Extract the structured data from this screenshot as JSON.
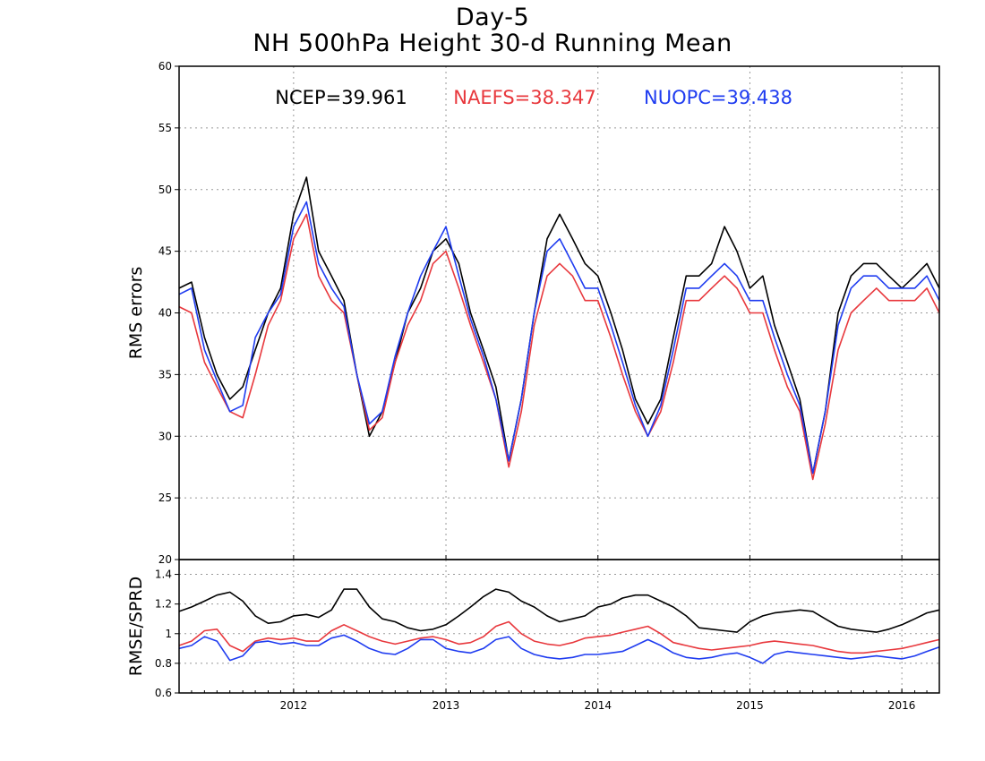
{
  "title_line1": "Day-5",
  "title_line2": "NH 500hPa Height 30-d Running Mean",
  "stats": [
    {
      "label": "NCEP=39.961",
      "color": "#000000"
    },
    {
      "label": "NAEFS=38.347",
      "color": "#e8383d"
    },
    {
      "label": "NUOPC=39.438",
      "color": "#1f3cf0"
    }
  ],
  "x_ticks": [
    "2012",
    "2013",
    "2014",
    "2015",
    "2016"
  ],
  "chart_data": [
    {
      "type": "line",
      "ylabel": "RMS errors",
      "ylim": [
        20,
        60
      ],
      "yticks": [
        20,
        25,
        30,
        35,
        40,
        45,
        50,
        55,
        60
      ],
      "xlim": [
        "2011-04-01",
        "2016-03-31"
      ],
      "grid": true,
      "x": [
        "2011-04-01",
        "2011-05-01",
        "2011-06-01",
        "2011-07-01",
        "2011-08-01",
        "2011-09-01",
        "2011-10-01",
        "2011-11-01",
        "2011-12-01",
        "2012-01-01",
        "2012-02-01",
        "2012-03-01",
        "2012-04-01",
        "2012-05-01",
        "2012-06-01",
        "2012-07-01",
        "2012-08-01",
        "2012-09-01",
        "2012-10-01",
        "2012-11-01",
        "2012-12-01",
        "2013-01-01",
        "2013-02-01",
        "2013-03-01",
        "2013-04-01",
        "2013-05-01",
        "2013-06-01",
        "2013-07-01",
        "2013-08-01",
        "2013-09-01",
        "2013-10-01",
        "2013-11-01",
        "2013-12-01",
        "2014-01-01",
        "2014-02-01",
        "2014-03-01",
        "2014-04-01",
        "2014-05-01",
        "2014-06-01",
        "2014-07-01",
        "2014-08-01",
        "2014-09-01",
        "2014-10-01",
        "2014-11-01",
        "2014-12-01",
        "2015-01-01",
        "2015-02-01",
        "2015-03-01",
        "2015-04-01",
        "2015-05-01",
        "2015-06-01",
        "2015-07-01",
        "2015-08-01",
        "2015-09-01",
        "2015-10-01",
        "2015-11-01",
        "2015-12-01",
        "2016-01-01",
        "2016-02-01",
        "2016-03-01",
        "2016-03-31"
      ],
      "series": [
        {
          "name": "NCEP",
          "color": "#000000",
          "values": [
            42,
            42.5,
            38,
            35,
            33,
            34,
            37,
            40,
            42,
            48,
            51,
            45,
            43,
            41,
            35,
            30,
            32,
            36,
            40,
            42,
            45,
            46,
            44,
            40,
            37,
            34,
            28,
            33,
            40,
            46,
            48,
            46,
            44,
            43,
            40,
            37,
            33,
            31,
            33,
            38,
            43,
            43,
            44,
            47,
            45,
            42,
            43,
            39,
            36,
            33,
            27,
            32,
            40,
            43,
            44,
            44,
            43,
            42,
            43,
            44,
            42
          ]
        },
        {
          "name": "NAEFS",
          "color": "#e8383d",
          "values": [
            40.5,
            40,
            36,
            34,
            32,
            31.5,
            35,
            39,
            41,
            46,
            48,
            43,
            41,
            40,
            35,
            30.5,
            31.5,
            36,
            39,
            41,
            44,
            45,
            42,
            39,
            36,
            33,
            27.5,
            32,
            39,
            43,
            44,
            43,
            41,
            41,
            38,
            35,
            32,
            30,
            32,
            36,
            41,
            41,
            42,
            43,
            42,
            40,
            40,
            37,
            34,
            32,
            26.5,
            31,
            37,
            40,
            41,
            42,
            41,
            41,
            41,
            42,
            40
          ]
        },
        {
          "name": "NUOPC",
          "color": "#1f3cf0",
          "values": [
            41.5,
            42,
            37,
            34.5,
            32,
            32.5,
            38,
            40,
            41.5,
            47,
            49,
            44,
            42,
            40.5,
            35,
            31,
            32,
            36.5,
            40,
            43,
            45,
            47,
            43,
            39.5,
            36.5,
            33,
            28,
            33,
            40,
            45,
            46,
            44,
            42,
            42,
            39,
            36,
            32.5,
            30,
            32.5,
            37,
            42,
            42,
            43,
            44,
            43,
            41,
            41,
            38,
            35,
            32.5,
            27,
            32,
            39,
            42,
            43,
            43,
            42,
            42,
            42,
            43,
            41
          ]
        }
      ]
    },
    {
      "type": "line",
      "ylabel": "RMSE/SPRD",
      "ylim": [
        0.6,
        1.5
      ],
      "yticks": [
        "0.6",
        "0.8",
        "1",
        "1.2",
        "1.4"
      ],
      "xlim": [
        "2011-04-01",
        "2016-03-31"
      ],
      "grid": true,
      "x": [
        "2011-04-01",
        "2011-05-01",
        "2011-06-01",
        "2011-07-01",
        "2011-08-01",
        "2011-09-01",
        "2011-10-01",
        "2011-11-01",
        "2011-12-01",
        "2012-01-01",
        "2012-02-01",
        "2012-03-01",
        "2012-04-01",
        "2012-05-01",
        "2012-06-01",
        "2012-07-01",
        "2012-08-01",
        "2012-09-01",
        "2012-10-01",
        "2012-11-01",
        "2012-12-01",
        "2013-01-01",
        "2013-02-01",
        "2013-03-01",
        "2013-04-01",
        "2013-05-01",
        "2013-06-01",
        "2013-07-01",
        "2013-08-01",
        "2013-09-01",
        "2013-10-01",
        "2013-11-01",
        "2013-12-01",
        "2014-01-01",
        "2014-02-01",
        "2014-03-01",
        "2014-04-01",
        "2014-05-01",
        "2014-06-01",
        "2014-07-01",
        "2014-08-01",
        "2014-09-01",
        "2014-10-01",
        "2014-11-01",
        "2014-12-01",
        "2015-01-01",
        "2015-02-01",
        "2015-03-01",
        "2015-04-01",
        "2015-05-01",
        "2015-06-01",
        "2015-07-01",
        "2015-08-01",
        "2015-09-01",
        "2015-10-01",
        "2015-11-01",
        "2015-12-01",
        "2016-01-01",
        "2016-02-01",
        "2016-03-01",
        "2016-03-31"
      ],
      "series": [
        {
          "name": "NCEP",
          "color": "#000000",
          "values": [
            1.15,
            1.18,
            1.22,
            1.26,
            1.28,
            1.22,
            1.12,
            1.07,
            1.08,
            1.12,
            1.13,
            1.11,
            1.16,
            1.3,
            1.3,
            1.18,
            1.1,
            1.08,
            1.04,
            1.02,
            1.03,
            1.06,
            1.12,
            1.18,
            1.25,
            1.3,
            1.28,
            1.22,
            1.18,
            1.12,
            1.08,
            1.1,
            1.12,
            1.18,
            1.2,
            1.24,
            1.26,
            1.26,
            1.22,
            1.18,
            1.12,
            1.04,
            1.03,
            1.02,
            1.01,
            1.08,
            1.12,
            1.14,
            1.15,
            1.16,
            1.15,
            1.1,
            1.05,
            1.03,
            1.02,
            1.01,
            1.03,
            1.06,
            1.1,
            1.14,
            1.16
          ]
        },
        {
          "name": "NAEFS",
          "color": "#e8383d",
          "values": [
            0.92,
            0.95,
            1.02,
            1.03,
            0.92,
            0.88,
            0.95,
            0.97,
            0.96,
            0.97,
            0.95,
            0.95,
            1.02,
            1.06,
            1.02,
            0.98,
            0.95,
            0.93,
            0.95,
            0.97,
            0.98,
            0.96,
            0.93,
            0.94,
            0.98,
            1.05,
            1.08,
            1.0,
            0.95,
            0.93,
            0.92,
            0.94,
            0.97,
            0.98,
            0.99,
            1.01,
            1.03,
            1.05,
            1.0,
            0.94,
            0.92,
            0.9,
            0.89,
            0.9,
            0.91,
            0.92,
            0.94,
            0.95,
            0.94,
            0.93,
            0.92,
            0.9,
            0.88,
            0.87,
            0.87,
            0.88,
            0.89,
            0.9,
            0.92,
            0.94,
            0.96
          ]
        },
        {
          "name": "NUOPC",
          "color": "#1f3cf0",
          "values": [
            0.9,
            0.92,
            0.98,
            0.95,
            0.82,
            0.85,
            0.94,
            0.95,
            0.93,
            0.94,
            0.92,
            0.92,
            0.97,
            0.99,
            0.95,
            0.9,
            0.87,
            0.86,
            0.9,
            0.96,
            0.96,
            0.9,
            0.88,
            0.87,
            0.9,
            0.96,
            0.98,
            0.9,
            0.86,
            0.84,
            0.83,
            0.84,
            0.86,
            0.86,
            0.87,
            0.88,
            0.92,
            0.96,
            0.92,
            0.87,
            0.84,
            0.83,
            0.84,
            0.86,
            0.87,
            0.84,
            0.8,
            0.86,
            0.88,
            0.87,
            0.86,
            0.85,
            0.84,
            0.83,
            0.84,
            0.85,
            0.84,
            0.83,
            0.85,
            0.88,
            0.91
          ]
        }
      ]
    }
  ]
}
